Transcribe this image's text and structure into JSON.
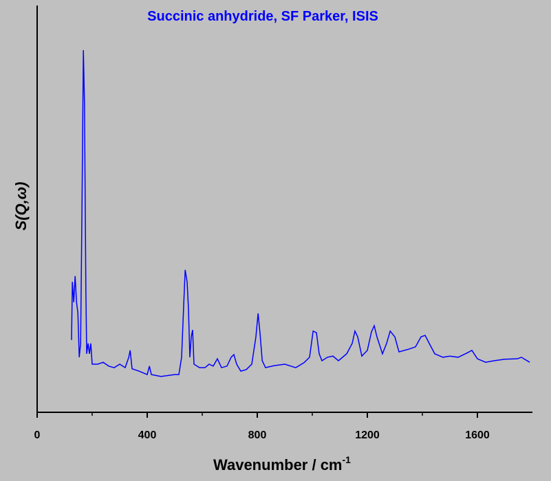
{
  "chart_data": {
    "type": "line",
    "title": "Succinic anhydride, SF Parker, ISIS",
    "x_label": "Wavenumber / cm",
    "x_label_superscript": "-1",
    "y_label": "S(Q,ω)",
    "xlim": [
      0,
      1800
    ],
    "xticks": [
      0,
      400,
      800,
      1200,
      1600
    ],
    "ylim": [
      0,
      100
    ],
    "series": [
      {
        "color": "#0000ff",
        "x": [
          125,
          128,
          133,
          138,
          143,
          148,
          153,
          158,
          163,
          168,
          172,
          177,
          180,
          185,
          190,
          195,
          200,
          220,
          240,
          260,
          280,
          300,
          320,
          333,
          338,
          345,
          370,
          400,
          408,
          415,
          450,
          500,
          515,
          525,
          533,
          538,
          545,
          550,
          555,
          560,
          565,
          570,
          590,
          610,
          625,
          640,
          655,
          670,
          690,
          705,
          715,
          725,
          740,
          760,
          780,
          795,
          803,
          810,
          818,
          830,
          860,
          900,
          940,
          970,
          990,
          1003,
          1015,
          1025,
          1035,
          1055,
          1075,
          1095,
          1125,
          1145,
          1155,
          1165,
          1180,
          1200,
          1215,
          1225,
          1235,
          1255,
          1270,
          1283,
          1300,
          1315,
          1350,
          1375,
          1395,
          1410,
          1425,
          1445,
          1475,
          1500,
          1530,
          1565,
          1580,
          1600,
          1630,
          1660,
          1700,
          1745,
          1760,
          1790
        ],
        "values": [
          18.8,
          33.9,
          28.6,
          35.4,
          28.6,
          25.9,
          14.3,
          17.9,
          53.6,
          94.1,
          80.4,
          32.1,
          15.2,
          17.9,
          15.2,
          17.9,
          12.5,
          12.5,
          13.0,
          12.0,
          11.6,
          12.5,
          11.6,
          14.3,
          16.1,
          11.3,
          10.7,
          9.8,
          12.0,
          9.8,
          9.3,
          9.8,
          9.8,
          14.3,
          28.6,
          37.0,
          33.9,
          26.8,
          14.3,
          19.6,
          21.4,
          12.5,
          11.6,
          11.6,
          12.5,
          12.0,
          13.9,
          11.6,
          12.0,
          14.3,
          15.0,
          12.5,
          10.7,
          11.1,
          12.5,
          19.6,
          25.7,
          20.5,
          13.4,
          11.6,
          12.1,
          12.5,
          11.6,
          12.9,
          14.3,
          21.1,
          20.7,
          15.2,
          13.4,
          14.3,
          14.6,
          13.4,
          15.2,
          17.9,
          21.1,
          19.6,
          14.6,
          16.1,
          20.9,
          22.5,
          19.6,
          15.2,
          17.9,
          21.1,
          19.6,
          15.7,
          16.4,
          17.0,
          19.6,
          20.0,
          17.9,
          15.2,
          14.3,
          14.6,
          14.3,
          15.5,
          16.1,
          13.9,
          13.0,
          13.4,
          13.8,
          13.9,
          14.3,
          13.0
        ]
      }
    ]
  }
}
